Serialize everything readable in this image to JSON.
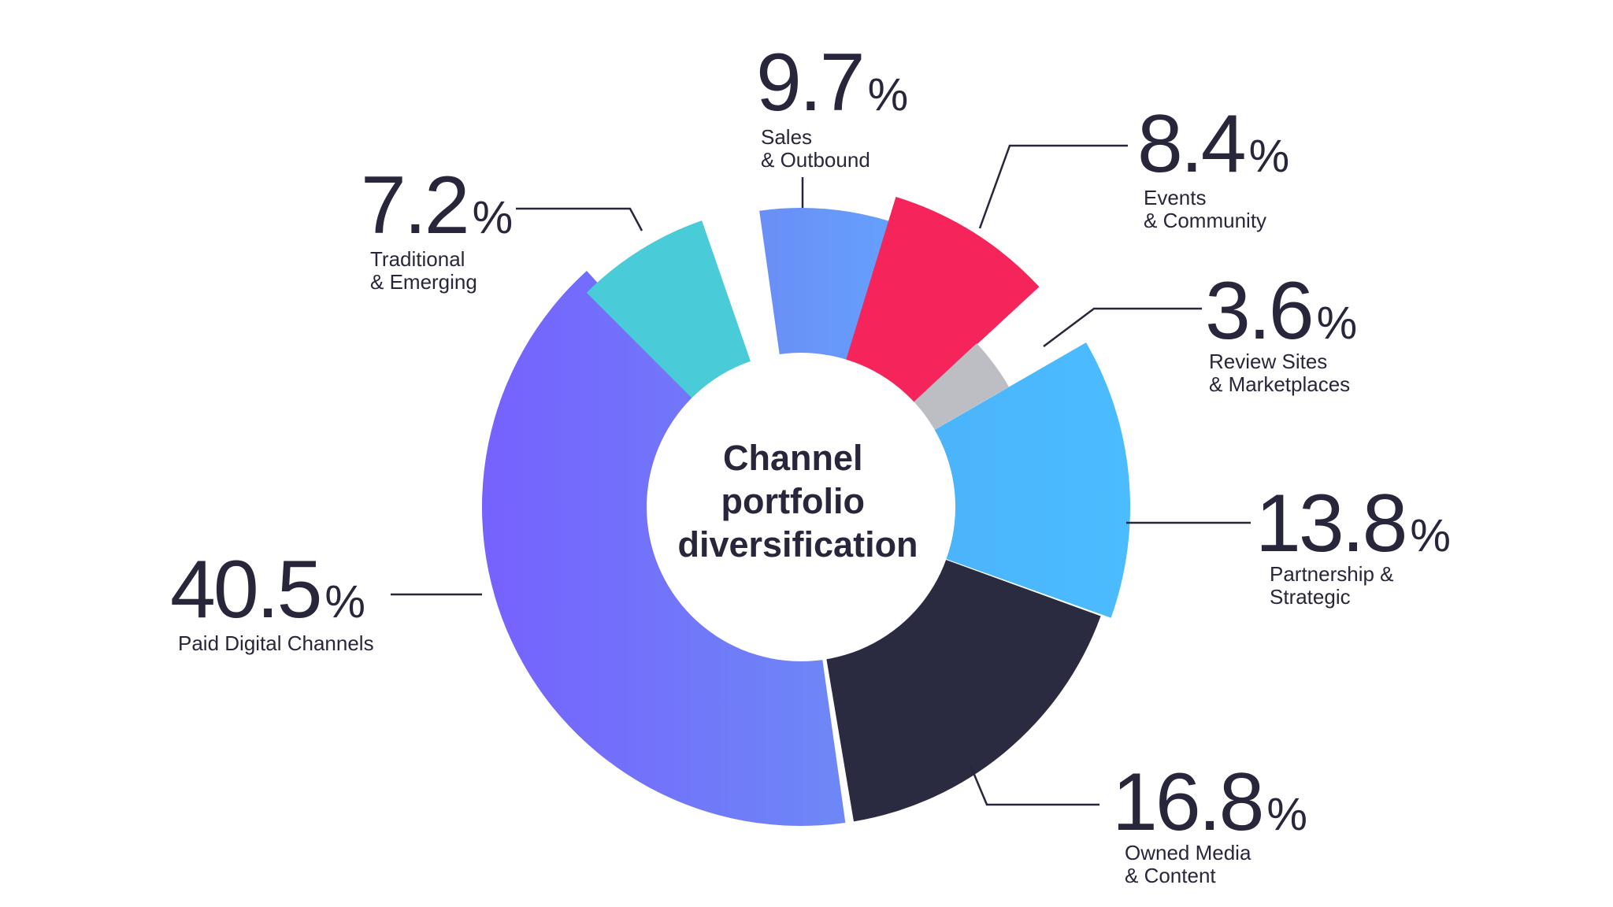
{
  "chart_data": {
    "type": "pie",
    "variant": "radial-donut",
    "center_label": [
      "Channel",
      "portfolio",
      "diversification"
    ],
    "percent_sign": "%",
    "slices": [
      {
        "label": [
          "Sales",
          "& Outbound"
        ],
        "value": "9.7",
        "color_start": "#6a8ef6",
        "color_end": "#63a6ff"
      },
      {
        "label": [
          "Events",
          "& Community"
        ],
        "value": "8.4",
        "color_start": "#f5245b",
        "color_end": "#f5245b"
      },
      {
        "label": [
          "Review Sites",
          "& Marketplaces"
        ],
        "value": "3.6",
        "color_start": "#bdbec3",
        "color_end": "#bdbec3"
      },
      {
        "label": [
          "Partnership &",
          "Strategic"
        ],
        "value": "13.8",
        "color_start": "#4bb4fb",
        "color_end": "#4bbcff"
      },
      {
        "label": [
          "Owned Media",
          "& Content"
        ],
        "value": "16.8",
        "color_start": "#2a2a40",
        "color_end": "#2a2a40"
      },
      {
        "label": [
          "Paid Digital Channels"
        ],
        "value": "40.5",
        "color_start": "#7661fe",
        "color_end": "#6d88f6"
      },
      {
        "label": [
          "Traditional",
          "& Emerging"
        ],
        "value": "7.2",
        "color_start": "#4acbd8",
        "color_end": "#4acbd8"
      }
    ]
  }
}
